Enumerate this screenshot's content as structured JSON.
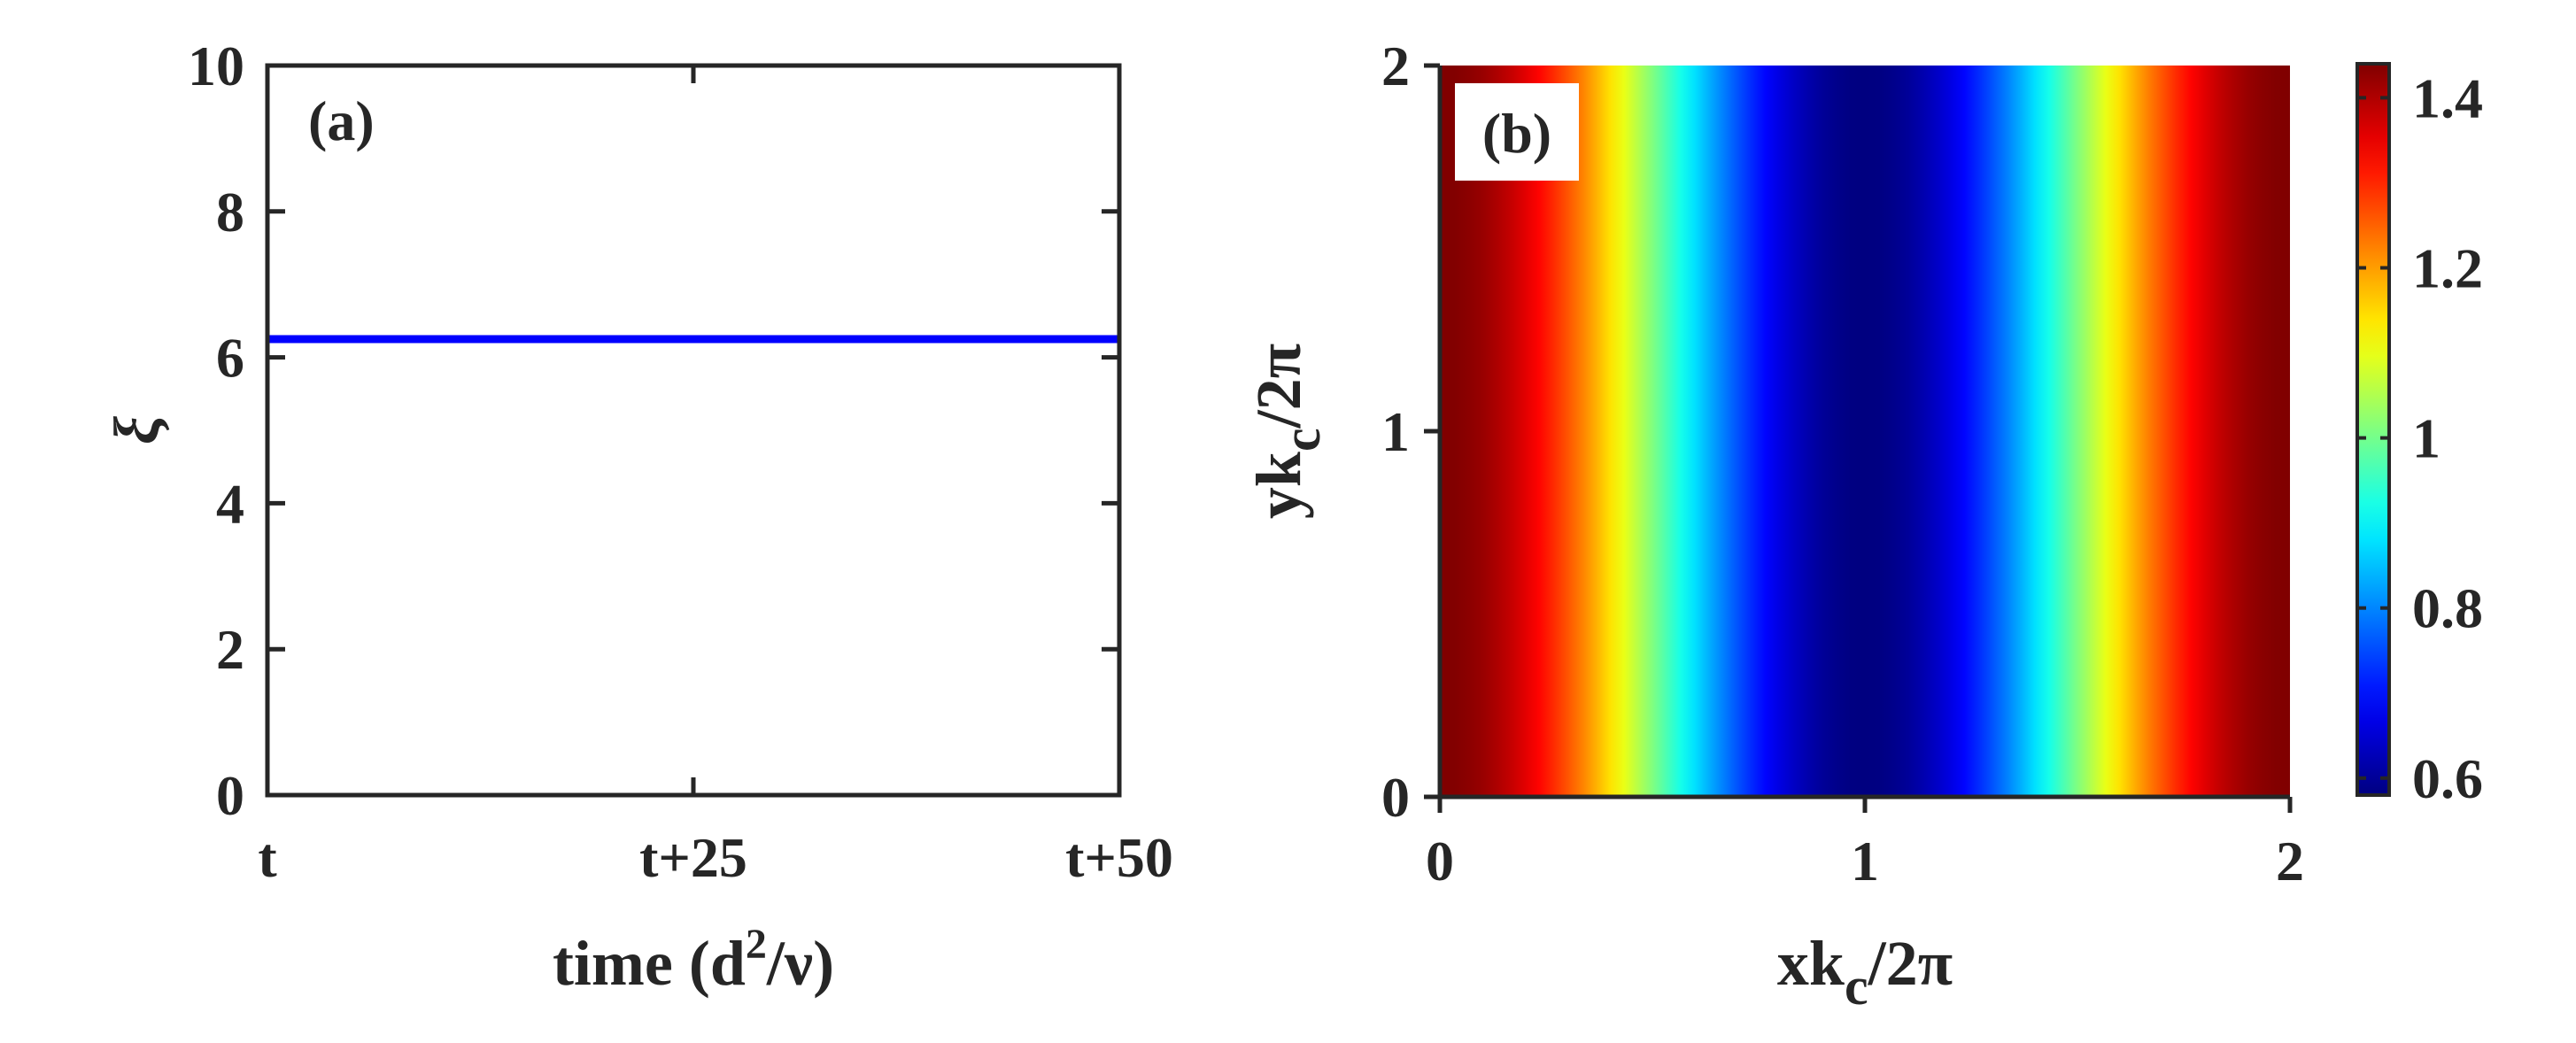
{
  "chart_data": [
    {
      "type": "line",
      "panel_label": "(a)",
      "xlabel": {
        "main": "time (d",
        "sup": "2",
        "tail": "/ν)"
      },
      "ylabel": "ξ",
      "x_ticks": [
        {
          "value": 0,
          "label": "t"
        },
        {
          "value": 25,
          "label": "t+25"
        },
        {
          "value": 50,
          "label": "t+50"
        }
      ],
      "y_ticks": [
        0,
        2,
        4,
        6,
        8,
        10
      ],
      "xlim": [
        0,
        50
      ],
      "ylim": [
        0,
        10
      ],
      "series": [
        {
          "x": [
            0,
            50
          ],
          "y": [
            6.25,
            6.25
          ],
          "color": "#0000ff"
        }
      ]
    },
    {
      "type": "heatmap",
      "panel_label": "(b)",
      "xlabel": {
        "main": "xk",
        "sub": "c",
        "tail": "/2π"
      },
      "ylabel": {
        "main": "yk",
        "sub": "c",
        "tail": "/2π"
      },
      "xlim": [
        0,
        2
      ],
      "ylim": [
        0,
        2
      ],
      "x_ticks": [
        0,
        1,
        2
      ],
      "y_ticks": [
        0,
        1,
        2
      ],
      "field": {
        "description_formula": "value = mean + amp * cos(π·x)",
        "mean": 1.01,
        "amplitude": 0.43,
        "constant_in_y": true
      },
      "colorbar": {
        "colormap": "jet",
        "range": [
          0.58,
          1.44
        ],
        "ticks": [
          "0.6",
          "0.8",
          "1",
          "1.2",
          "1.4"
        ],
        "tick_values": [
          0.6,
          0.8,
          1.0,
          1.2,
          1.4
        ]
      }
    }
  ]
}
